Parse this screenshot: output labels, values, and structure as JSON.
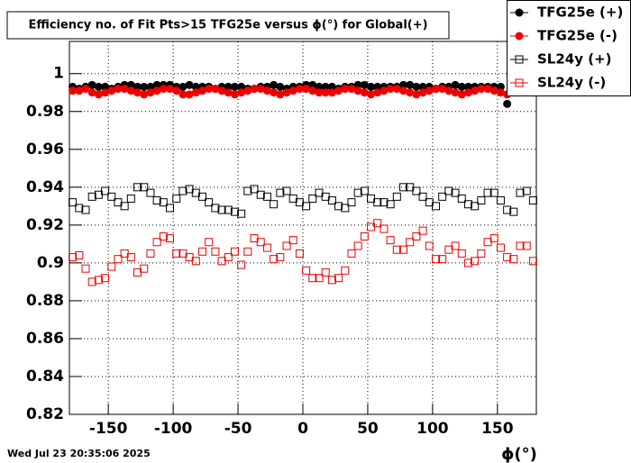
{
  "chart_data": {
    "type": "scatter",
    "title": "Efficiency no. of Fit Pts>15 TFG25e versus ϕ(°) for Global(+)",
    "x_label": "ϕ(°)",
    "timestamp": "Wed Jul 23 20:35:06 2025",
    "xlim": [
      -180,
      180
    ],
    "ylim": [
      0.82,
      1.017
    ],
    "xticks": [
      -150,
      -100,
      -50,
      0,
      50,
      100,
      150
    ],
    "yticks": [
      0.82,
      0.84,
      0.86,
      0.88,
      0.9,
      0.92,
      0.94,
      0.96,
      0.98,
      1
    ],
    "grid": true,
    "legend": "top-right",
    "x": [
      -177.5,
      -172.5,
      -167.5,
      -162.5,
      -157.5,
      -152.5,
      -147.5,
      -142.5,
      -137.5,
      -132.5,
      -127.5,
      -122.5,
      -117.5,
      -112.5,
      -107.5,
      -102.5,
      -97.5,
      -92.5,
      -87.5,
      -82.5,
      -77.5,
      -72.5,
      -67.5,
      -62.5,
      -57.5,
      -52.5,
      -47.5,
      -42.5,
      -37.5,
      -32.5,
      -27.5,
      -22.5,
      -17.5,
      -12.5,
      -7.5,
      -2.5,
      2.5,
      7.5,
      12.5,
      17.5,
      22.5,
      27.5,
      32.5,
      37.5,
      42.5,
      47.5,
      52.5,
      57.5,
      62.5,
      67.5,
      72.5,
      77.5,
      82.5,
      87.5,
      92.5,
      97.5,
      102.5,
      107.5,
      112.5,
      117.5,
      122.5,
      127.5,
      132.5,
      137.5,
      142.5,
      147.5,
      152.5,
      157.5,
      162.5,
      167.5,
      172.5,
      177.5
    ],
    "series": [
      {
        "name": "TFG25e (+)",
        "color": "#000000",
        "marker": "circle",
        "filled": true,
        "values": [
          0.993,
          0.992,
          0.993,
          0.994,
          0.993,
          0.993,
          0.992,
          0.993,
          0.994,
          0.994,
          0.993,
          0.993,
          0.993,
          0.994,
          0.994,
          0.994,
          0.993,
          0.993,
          0.994,
          0.993,
          0.993,
          0.993,
          0.992,
          0.993,
          0.993,
          0.993,
          0.993,
          0.992,
          0.992,
          0.993,
          0.993,
          0.994,
          0.993,
          0.992,
          0.993,
          0.993,
          0.994,
          0.994,
          0.993,
          0.993,
          0.993,
          0.992,
          0.993,
          0.993,
          0.994,
          0.994,
          0.993,
          0.993,
          0.993,
          0.993,
          0.993,
          0.994,
          0.994,
          0.993,
          0.993,
          0.993,
          0.992,
          0.993,
          0.993,
          0.994,
          0.993,
          0.993,
          0.993,
          0.993,
          0.993,
          0.993,
          0.993,
          0.984,
          0.993,
          0.992,
          0.993,
          0.993
        ]
      },
      {
        "name": "TFG25e (-)",
        "color": "#ee0000",
        "marker": "circle",
        "filled": true,
        "values": [
          0.991,
          0.991,
          0.992,
          0.99,
          0.989,
          0.99,
          0.991,
          0.992,
          0.992,
          0.991,
          0.99,
          0.989,
          0.99,
          0.991,
          0.992,
          0.992,
          0.991,
          0.989,
          0.989,
          0.99,
          0.991,
          0.992,
          0.992,
          0.991,
          0.99,
          0.989,
          0.99,
          0.991,
          0.992,
          0.992,
          0.991,
          0.99,
          0.989,
          0.99,
          0.991,
          0.992,
          0.992,
          0.991,
          0.99,
          0.99,
          0.99,
          0.991,
          0.992,
          0.992,
          0.991,
          0.99,
          0.989,
          0.99,
          0.991,
          0.992,
          0.992,
          0.991,
          0.99,
          0.989,
          0.99,
          0.991,
          0.992,
          0.992,
          0.991,
          0.99,
          0.989,
          0.99,
          0.991,
          0.992,
          0.992,
          0.991,
          0.99,
          0.989,
          0.99,
          0.991,
          0.991,
          0.99
        ]
      },
      {
        "name": "SL24y (+)",
        "color": "#000000",
        "marker": "square",
        "filled": false,
        "values": [
          0.932,
          0.929,
          0.928,
          0.935,
          0.936,
          0.938,
          0.935,
          0.932,
          0.93,
          0.934,
          0.94,
          0.94,
          0.937,
          0.933,
          0.932,
          0.929,
          0.934,
          0.938,
          0.939,
          0.937,
          0.935,
          0.932,
          0.929,
          0.928,
          0.928,
          0.927,
          0.926,
          0.938,
          0.939,
          0.936,
          0.935,
          0.931,
          0.937,
          0.938,
          0.934,
          0.932,
          0.93,
          0.934,
          0.937,
          0.935,
          0.933,
          0.93,
          0.929,
          0.932,
          0.937,
          0.938,
          0.934,
          0.932,
          0.932,
          0.931,
          0.935,
          0.94,
          0.94,
          0.938,
          0.935,
          0.932,
          0.93,
          0.935,
          0.938,
          0.937,
          0.934,
          0.931,
          0.93,
          0.933,
          0.937,
          0.937,
          0.933,
          0.928,
          0.927,
          0.937,
          0.938,
          0.933
        ]
      },
      {
        "name": "SL24y (-)",
        "color": "#ee0000",
        "marker": "square",
        "filled": false,
        "values": [
          0.903,
          0.904,
          0.897,
          0.89,
          0.891,
          0.892,
          0.898,
          0.902,
          0.905,
          0.903,
          0.895,
          0.897,
          0.905,
          0.911,
          0.914,
          0.913,
          0.905,
          0.905,
          0.903,
          0.901,
          0.906,
          0.911,
          0.906,
          0.901,
          0.903,
          0.906,
          0.899,
          0.906,
          0.913,
          0.911,
          0.908,
          0.902,
          0.903,
          0.909,
          0.912,
          0.905,
          0.896,
          0.892,
          0.892,
          0.895,
          0.891,
          0.892,
          0.896,
          0.905,
          0.909,
          0.914,
          0.919,
          0.921,
          0.918,
          0.912,
          0.907,
          0.907,
          0.911,
          0.914,
          0.917,
          0.909,
          0.902,
          0.902,
          0.907,
          0.909,
          0.905,
          0.9,
          0.901,
          0.905,
          0.911,
          0.913,
          0.908,
          0.903,
          0.902,
          0.909,
          0.909,
          0.901
        ]
      }
    ]
  }
}
